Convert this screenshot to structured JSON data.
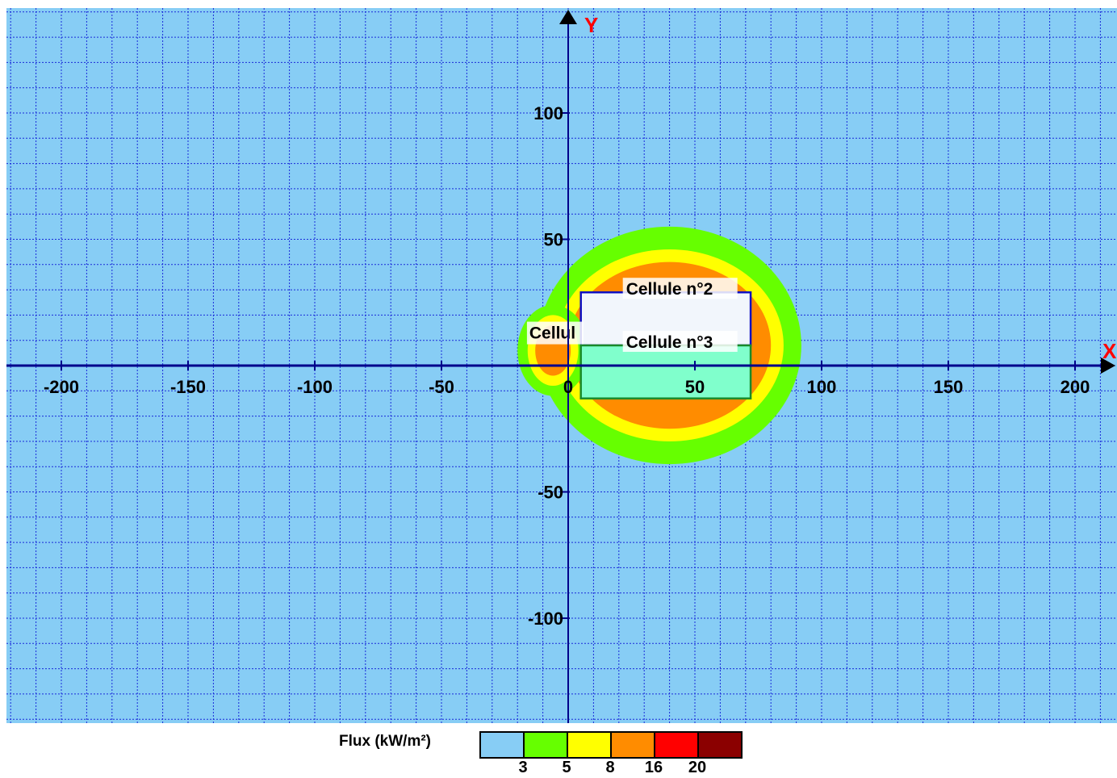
{
  "chart_data": {
    "type": "heatmap",
    "xlabel": "X",
    "ylabel": "Y",
    "xlim": [
      -220,
      215
    ],
    "ylim": [
      -140,
      140
    ],
    "grid": true,
    "x_ticks": [
      -200,
      -150,
      -100,
      -50,
      0,
      50,
      100,
      150,
      200
    ],
    "y_ticks": [
      100,
      50,
      -50,
      -100
    ],
    "tick_labels": {
      "x": [
        "-200",
        "-150",
        "-100",
        "-50",
        "0",
        "50",
        "100",
        "150",
        "200"
      ],
      "y": [
        "100",
        "50",
        "-50",
        "-100"
      ]
    },
    "flux_zones": [
      {
        "level": "3",
        "color": "#66ff00",
        "center": [
          40,
          8
        ],
        "rx": 52,
        "ry": 47
      },
      {
        "level": "5",
        "color": "#ffff00",
        "center": [
          40,
          8
        ],
        "rx": 45,
        "ry": 38
      },
      {
        "level": "8",
        "color": "#ff8c00",
        "center": [
          40,
          8
        ],
        "rx": 40,
        "ry": 33
      },
      {
        "level": "3",
        "color": "#66ff00",
        "center": [
          -6,
          6
        ],
        "rx": 14,
        "ry": 18
      },
      {
        "level": "5",
        "color": "#ffff00",
        "center": [
          -6,
          6
        ],
        "rx": 10,
        "ry": 14
      },
      {
        "level": "8",
        "color": "#ff8c00",
        "center": [
          -6,
          6
        ],
        "rx": 7,
        "ry": 10
      }
    ],
    "cells": [
      {
        "label": "Cellule n°2",
        "x": [
          5,
          72
        ],
        "y": [
          8,
          29
        ],
        "fill": "#f2f6fc",
        "stroke": "#1010c0"
      },
      {
        "label": "Cellule n°3",
        "x": [
          5,
          72
        ],
        "y": [
          -13,
          8
        ],
        "fill": "#80ffcc",
        "stroke": "#1a8a2a"
      }
    ],
    "partial_label": {
      "text": "Cellul",
      "x": -15,
      "y": 11
    }
  },
  "colors": {
    "background": "#87cdf5",
    "grid": "#1a2bd9",
    "axis": "#00008b",
    "axis_label": "#ff0000"
  },
  "legend": {
    "title": "Flux (kW/m²)",
    "colors": [
      "#87cdf5",
      "#66ff00",
      "#ffff00",
      "#ff8c00",
      "#ff0000",
      "#8b0000"
    ],
    "ticks": [
      "3",
      "5",
      "8",
      "16",
      "20"
    ]
  }
}
